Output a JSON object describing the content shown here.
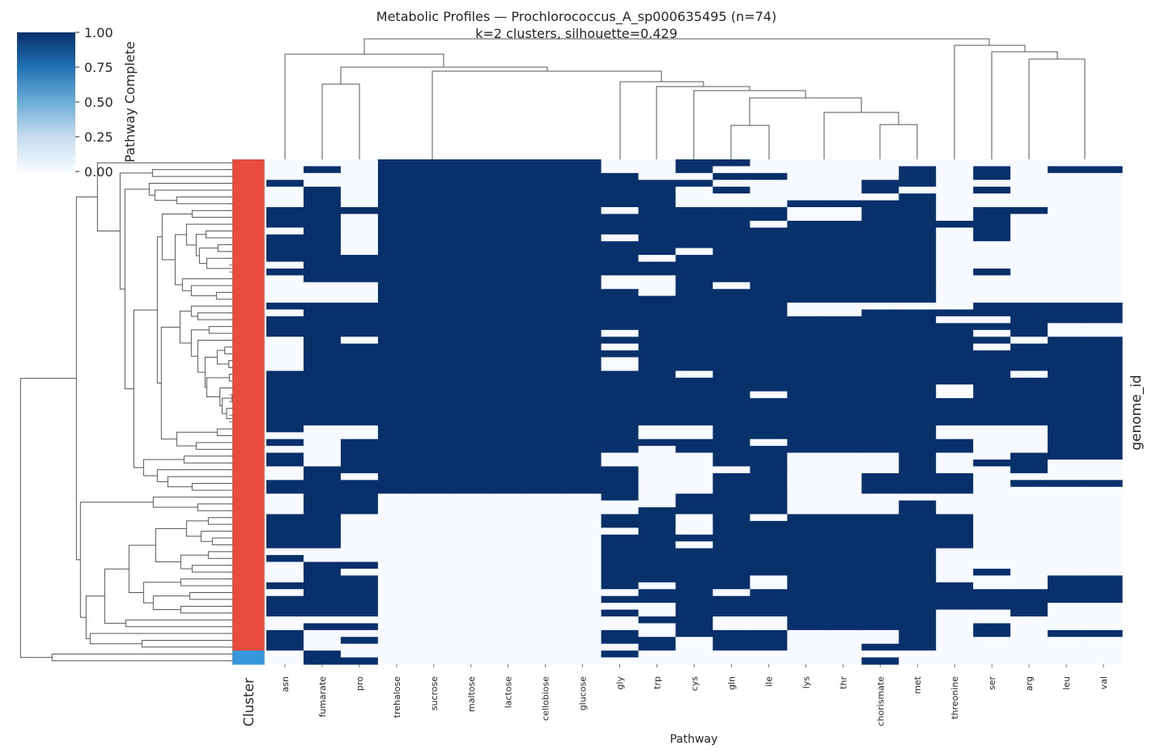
{
  "title": {
    "line1": "Metabolic Profiles — Prochlorococcus_A_sp000635495 (n=74)",
    "line2": "k=2 clusters, silhouette=0.429"
  },
  "chart_data": {
    "type": "heatmap",
    "title": "Metabolic Profiles — Prochlorococcus_A_sp000635495 (n=74)",
    "subtitle": "k=2 clusters, silhouette=0.429",
    "xlabel": "Pathway",
    "ylabel": "genome_id",
    "row_color_label": "Cluster",
    "columns": [
      "asn",
      "fumarate",
      "pro",
      "trehalose",
      "sucrose",
      "maltose",
      "lactose",
      "cellobiose",
      "glucose",
      "gly",
      "trp",
      "cys",
      "gln",
      "ile",
      "lys",
      "thr",
      "chorismate",
      "met",
      "threonine",
      "ser",
      "arg",
      "leu",
      "val"
    ],
    "value_encoding": "run-length per column, top row to bottom row, tokens value*count",
    "values_by_column": {
      "asn": "0*3 1 0*3 1*3 0 1*4 0 1 0*4 1 0 1*3 0*5 1*9 0 1 0 1*2 0*2 1*2 0*3 1*5 0 1 0*3 1 0 1*3 0*2 1*3 0*2",
      "fumarate": "0 1 0*2 1*14 0*3 1*18 0*6 1*12 0*2 1*8 0 1 0*3 1*2",
      "pro": "0*7 1 0*6 1*4 0*3 1*5 0 1*12 0*2 1*5 0 1*5 0*7 1 0 1*6 0 1 0 1 0*2 1",
      "trehalose": "1*49 0*25",
      "sucrose": "1*49 0*25",
      "maltose": "1*49 0*25",
      "lactose": "1*49 0*25",
      "cellobiose": "1*49 0*25",
      "glucose": "1*49 0*25",
      "gly": "0*2 1*5 0 1*3 0 1*5 0*2 1*6 0 1 0 1 0*2 1*12 0*2 1*5 0*2 1*2 0 1*8 0 1 0 1 0*2 1*2 0 1 0",
      "trp": "0*3 1*11 0 1*2 0*3 1*19 0*2 1 0*9 1*11 0 1*2 0*2 1 0*2 1*2 0*2",
      "cys": "1*2 0 1 0*3 1*6 0 1*17 0 1*7 0*2 1*2 0*6 1*3 0*3 1 0 1*13 0*4",
      "gln": "1 0 1 0 1 0*2 1*11 0 1*26 0 1*17 0 1*3 0*2 1*3 0*2",
      "ile": "0*2 1 0*4 1*2 0 1*24 0 1*6 0 1*10 0 1*8 0*2 1*4 0*2 1*3 0*2",
      "lys": "0*6 1 0*2 1*12 0*2 1*20 0*9 1*17 0*5",
      "thr": "0*6 1 0*2 1*12 0*2 1*20 0*9 1*17 0*5",
      "chorismate": "0*3 1*2 0 1*15 0 1*21 0*3 1*3 0*3 1*17 0*2 1 0 1",
      "met": "0 1*3 0 1*16 0 1*27 0 1*22 0*2",
      "threonine": "0*9 1 0*12 1 0 1*9 0*2 1*4 0*2 1*2 0*3 1*3 0*3 1*5 0*5 1*4 0*8",
      "ser": "0 1*2 0 1 0*2 1*5 0*4 1 0*4 1*2 0 1 0 1 0 1*11 0*5 1 0*15 1 0*2 1*3 0*2 1*2 0*4",
      "arg": "0*7 1 0*13 1*5 0 1*4 0 1*7 0*4 1*3 0 1 0*15 1*4 0*7",
      "leu": "0 1 0*19 1*3 0*2 1*18 0*3 1 0*13 1*4 0*4 1 0*4",
      "val": "0 1 0*19 1*3 0*2 1*18 0*3 1 0*13 1*4 0*4 1 0*4"
    },
    "row_clusters": "1*72 2*2",
    "cluster_colors": {
      "1": "#e74c3c",
      "2": "#3498db"
    },
    "colorbar": {
      "label": "Pathway Complete",
      "range": [
        0,
        1
      ],
      "ticks": [
        "1.00",
        "0.75",
        "0.50",
        "0.25",
        "0.00"
      ],
      "tick_values": [
        1.0,
        0.75,
        0.5,
        0.25,
        0.0
      ],
      "cmap": "Blues",
      "color_low": "#f7fbff",
      "color_high": "#08306b"
    },
    "dendrograms": {
      "rows": true,
      "columns": true
    }
  }
}
